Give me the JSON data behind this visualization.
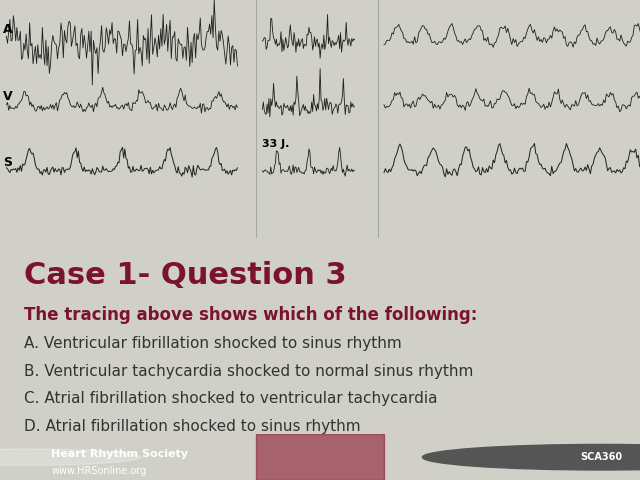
{
  "title": "Case 1- Question 3",
  "subtitle": "The tracing above shows which of the following:",
  "options": [
    "A. Ventricular fibrillation shocked to sinus rhythm",
    "B. Ventricular tachycardia shocked to normal sinus rhythm",
    "C. Atrial fibrillation shocked to ventricular tachycardia",
    "D. Atrial fibrillation shocked to sinus rhythm"
  ],
  "title_color": "#7B1230",
  "subtitle_color": "#7B1230",
  "options_color": "#333333",
  "bg_color_main": "#FFFFFF",
  "bg_color_top": "#D0D0C8",
  "bg_color_footer": "#7B1230",
  "footer_text1": "Heart Rhythm Society",
  "footer_text2": "www.HRSonline.org",
  "footer_text3": "SCA360",
  "ecg_bg": "#EEEEEE",
  "title_fontsize": 22,
  "subtitle_fontsize": 12,
  "options_fontsize": 11,
  "footer_fontsize": 8
}
